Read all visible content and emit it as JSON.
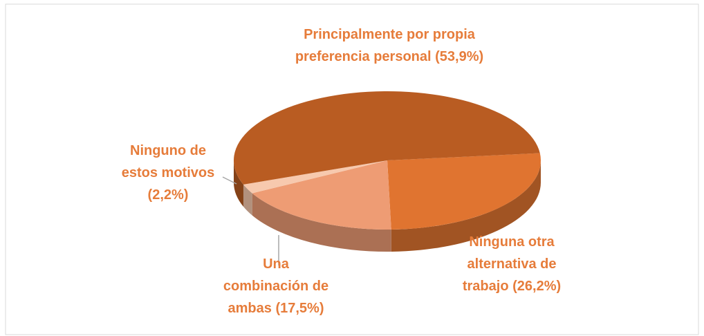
{
  "chart_data": {
    "type": "pie3d",
    "categories": [
      "Ninguna otra alternativa de trabajo",
      "Una combinación de ambas",
      "Ninguno de estos motivos",
      "Principalmente por propia preferencia personal"
    ],
    "values": [
      26.2,
      17.5,
      2.2,
      53.9
    ],
    "value_labels": [
      "(26,2%)",
      "(17,5%)",
      "(2,2%)",
      "(53,9%)"
    ],
    "colors": [
      "#e07430",
      "#ee9c74",
      "#f7c9ae",
      "#b95c22"
    ],
    "label_color": "#e67c3a"
  }
}
